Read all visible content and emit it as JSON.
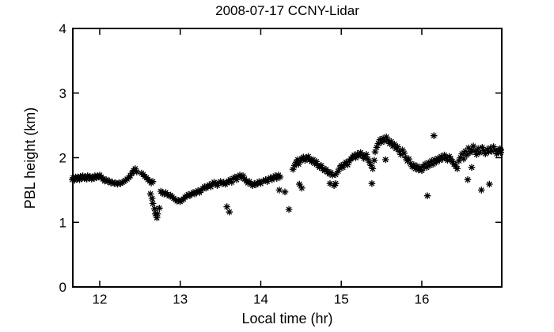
{
  "figure": {
    "title": "2008-07-17 CCNY-Lidar"
  },
  "chart_data": {
    "type": "scatter",
    "title": "2008-07-17 CCNY-Lidar",
    "xlabel": "Local time (hr)",
    "ylabel": "PBL height (km)",
    "xlim": [
      11.666,
      16.993
    ],
    "ylim": [
      0,
      4
    ],
    "xticks": [
      12,
      13,
      14,
      15,
      16
    ],
    "yticks": [
      0,
      1,
      2,
      3,
      4
    ],
    "grid": false,
    "legend": "none",
    "marker": "asterisk",
    "marker_color": "#000000",
    "background_color": "#ffffff",
    "axis_color": "#000000",
    "points": [
      [
        11.66,
        1.66
      ],
      [
        11.67,
        1.69
      ],
      [
        11.69,
        1.65
      ],
      [
        11.7,
        1.7
      ],
      [
        11.72,
        1.67
      ],
      [
        11.73,
        1.7
      ],
      [
        11.75,
        1.66
      ],
      [
        11.76,
        1.71
      ],
      [
        11.78,
        1.68
      ],
      [
        11.79,
        1.72
      ],
      [
        11.81,
        1.68
      ],
      [
        11.82,
        1.7
      ],
      [
        11.84,
        1.67
      ],
      [
        11.85,
        1.72
      ],
      [
        11.87,
        1.69
      ],
      [
        11.88,
        1.71
      ],
      [
        11.9,
        1.67
      ],
      [
        11.91,
        1.7
      ],
      [
        11.93,
        1.68
      ],
      [
        11.94,
        1.72
      ],
      [
        11.96,
        1.69
      ],
      [
        11.97,
        1.72
      ],
      [
        11.99,
        1.7
      ],
      [
        12.0,
        1.73
      ],
      [
        12.02,
        1.7
      ],
      [
        12.04,
        1.67
      ],
      [
        12.06,
        1.64
      ],
      [
        12.08,
        1.66
      ],
      [
        12.1,
        1.63
      ],
      [
        12.12,
        1.64
      ],
      [
        12.14,
        1.61
      ],
      [
        12.16,
        1.62
      ],
      [
        12.18,
        1.6
      ],
      [
        12.2,
        1.61
      ],
      [
        12.22,
        1.59
      ],
      [
        12.24,
        1.61
      ],
      [
        12.26,
        1.6
      ],
      [
        12.28,
        1.62
      ],
      [
        12.3,
        1.63
      ],
      [
        12.32,
        1.65
      ],
      [
        12.34,
        1.67
      ],
      [
        12.36,
        1.69
      ],
      [
        12.38,
        1.72
      ],
      [
        12.4,
        1.76
      ],
      [
        12.42,
        1.8
      ],
      [
        12.44,
        1.83
      ],
      [
        12.46,
        1.78
      ],
      [
        12.52,
        1.76
      ],
      [
        12.54,
        1.74
      ],
      [
        12.56,
        1.71
      ],
      [
        12.58,
        1.69
      ],
      [
        12.6,
        1.66
      ],
      [
        12.62,
        1.64
      ],
      [
        12.64,
        1.61
      ],
      [
        12.66,
        1.63
      ],
      [
        12.63,
        1.44
      ],
      [
        12.65,
        1.37
      ],
      [
        12.66,
        1.29
      ],
      [
        12.68,
        1.21
      ],
      [
        12.69,
        1.13
      ],
      [
        12.71,
        1.07
      ],
      [
        12.72,
        1.13
      ],
      [
        12.74,
        1.22
      ],
      [
        12.76,
        1.48
      ],
      [
        12.78,
        1.45
      ],
      [
        12.8,
        1.44
      ],
      [
        12.82,
        1.46
      ],
      [
        12.84,
        1.43
      ],
      [
        12.86,
        1.41
      ],
      [
        12.88,
        1.42
      ],
      [
        12.9,
        1.39
      ],
      [
        12.92,
        1.37
      ],
      [
        12.94,
        1.35
      ],
      [
        12.96,
        1.33
      ],
      [
        12.98,
        1.34
      ],
      [
        13.0,
        1.32
      ],
      [
        13.02,
        1.34
      ],
      [
        13.04,
        1.36
      ],
      [
        13.06,
        1.39
      ],
      [
        13.08,
        1.41
      ],
      [
        13.1,
        1.43
      ],
      [
        13.12,
        1.41
      ],
      [
        13.14,
        1.44
      ],
      [
        13.16,
        1.46
      ],
      [
        13.18,
        1.44
      ],
      [
        13.2,
        1.47
      ],
      [
        13.22,
        1.49
      ],
      [
        13.24,
        1.46
      ],
      [
        13.26,
        1.5
      ],
      [
        13.28,
        1.52
      ],
      [
        13.3,
        1.55
      ],
      [
        13.32,
        1.53
      ],
      [
        13.34,
        1.56
      ],
      [
        13.36,
        1.58
      ],
      [
        13.38,
        1.55
      ],
      [
        13.4,
        1.6
      ],
      [
        13.42,
        1.62
      ],
      [
        13.44,
        1.6
      ],
      [
        13.46,
        1.57
      ],
      [
        13.48,
        1.61
      ],
      [
        13.5,
        1.63
      ],
      [
        13.52,
        1.6
      ],
      [
        13.54,
        1.62
      ],
      [
        13.56,
        1.59
      ],
      [
        13.58,
        1.61
      ],
      [
        13.58,
        1.24
      ],
      [
        13.61,
        1.16
      ],
      [
        13.6,
        1.64
      ],
      [
        13.62,
        1.66
      ],
      [
        13.64,
        1.62
      ],
      [
        13.66,
        1.68
      ],
      [
        13.68,
        1.7
      ],
      [
        13.7,
        1.66
      ],
      [
        13.72,
        1.71
      ],
      [
        13.74,
        1.73
      ],
      [
        13.76,
        1.69
      ],
      [
        13.78,
        1.72
      ],
      [
        13.8,
        1.67
      ],
      [
        13.82,
        1.64
      ],
      [
        13.84,
        1.61
      ],
      [
        13.86,
        1.63
      ],
      [
        13.88,
        1.59
      ],
      [
        13.9,
        1.57
      ],
      [
        13.92,
        1.6
      ],
      [
        13.94,
        1.58
      ],
      [
        13.96,
        1.61
      ],
      [
        13.98,
        1.63
      ],
      [
        14.0,
        1.6
      ],
      [
        14.03,
        1.64
      ],
      [
        14.06,
        1.66
      ],
      [
        14.08,
        1.63
      ],
      [
        14.1,
        1.67
      ],
      [
        14.12,
        1.69
      ],
      [
        14.14,
        1.66
      ],
      [
        14.16,
        1.7
      ],
      [
        14.18,
        1.72
      ],
      [
        14.2,
        1.68
      ],
      [
        14.22,
        1.73
      ],
      [
        14.24,
        1.7
      ],
      [
        14.23,
        1.5
      ],
      [
        14.3,
        1.47
      ],
      [
        14.35,
        1.2
      ],
      [
        14.4,
        1.82
      ],
      [
        14.42,
        1.88
      ],
      [
        14.44,
        1.93
      ],
      [
        14.46,
        1.97
      ],
      [
        14.47,
        1.9
      ],
      [
        14.49,
        1.95
      ],
      [
        14.48,
        1.59
      ],
      [
        14.51,
        1.53
      ],
      [
        14.51,
        1.99
      ],
      [
        14.53,
        2.01
      ],
      [
        14.55,
        1.96
      ],
      [
        14.57,
        2.0
      ],
      [
        14.59,
        2.02
      ],
      [
        14.61,
        1.97
      ],
      [
        14.63,
        1.94
      ],
      [
        14.65,
        1.97
      ],
      [
        14.67,
        1.91
      ],
      [
        14.69,
        1.94
      ],
      [
        14.71,
        1.88
      ],
      [
        14.73,
        1.85
      ],
      [
        14.75,
        1.88
      ],
      [
        14.77,
        1.83
      ],
      [
        14.79,
        1.8
      ],
      [
        14.81,
        1.82
      ],
      [
        14.83,
        1.78
      ],
      [
        14.85,
        1.75
      ],
      [
        14.87,
        1.77
      ],
      [
        14.89,
        1.73
      ],
      [
        14.86,
        1.6
      ],
      [
        14.91,
        1.57
      ],
      [
        14.93,
        1.74
      ],
      [
        14.93,
        1.6
      ],
      [
        14.96,
        1.79
      ],
      [
        14.98,
        1.84
      ],
      [
        15.0,
        1.88
      ],
      [
        15.02,
        1.85
      ],
      [
        15.04,
        1.9
      ],
      [
        15.06,
        1.93
      ],
      [
        15.08,
        1.89
      ],
      [
        15.1,
        1.95
      ],
      [
        15.12,
        1.98
      ],
      [
        15.14,
        2.01
      ],
      [
        15.16,
        2.04
      ],
      [
        15.18,
        2.0
      ],
      [
        15.2,
        2.06
      ],
      [
        15.22,
        2.03
      ],
      [
        15.24,
        2.08
      ],
      [
        15.26,
        2.04
      ],
      [
        15.28,
        1.99
      ],
      [
        15.3,
        2.02
      ],
      [
        15.31,
        2.05
      ],
      [
        15.33,
        1.98
      ],
      [
        15.35,
        1.93
      ],
      [
        15.37,
        1.88
      ],
      [
        15.38,
        1.6
      ],
      [
        15.39,
        1.83
      ],
      [
        15.41,
        1.96
      ],
      [
        15.42,
        2.09
      ],
      [
        15.44,
        2.16
      ],
      [
        15.46,
        2.22
      ],
      [
        15.48,
        2.28
      ],
      [
        15.5,
        2.24
      ],
      [
        15.52,
        2.3
      ],
      [
        15.54,
        2.26
      ],
      [
        15.56,
        2.32
      ],
      [
        15.58,
        2.27
      ],
      [
        15.6,
        2.22
      ],
      [
        15.62,
        2.25
      ],
      [
        15.55,
        1.97
      ],
      [
        15.64,
        2.18
      ],
      [
        15.66,
        2.21
      ],
      [
        15.68,
        2.14
      ],
      [
        15.7,
        2.17
      ],
      [
        15.72,
        2.1
      ],
      [
        15.74,
        2.05
      ],
      [
        15.76,
        2.12
      ],
      [
        15.78,
        2.07
      ],
      [
        15.8,
        2.0
      ],
      [
        15.82,
        1.95
      ],
      [
        15.84,
        1.98
      ],
      [
        15.86,
        1.91
      ],
      [
        15.88,
        1.86
      ],
      [
        15.9,
        1.89
      ],
      [
        15.92,
        1.83
      ],
      [
        15.94,
        1.87
      ],
      [
        15.96,
        1.81
      ],
      [
        15.98,
        1.85
      ],
      [
        16.0,
        1.8
      ],
      [
        16.02,
        1.86
      ],
      [
        16.04,
        1.9
      ],
      [
        16.06,
        1.85
      ],
      [
        16.07,
        1.41
      ],
      [
        16.08,
        1.92
      ],
      [
        16.1,
        1.88
      ],
      [
        16.12,
        1.95
      ],
      [
        16.14,
        1.9
      ],
      [
        16.15,
        2.34
      ],
      [
        16.16,
        1.97
      ],
      [
        16.18,
        1.93
      ],
      [
        16.2,
        1.99
      ],
      [
        16.22,
        1.96
      ],
      [
        16.24,
        2.02
      ],
      [
        16.26,
        1.98
      ],
      [
        16.28,
        2.04
      ],
      [
        16.3,
        2.0
      ],
      [
        16.32,
        1.96
      ],
      [
        16.34,
        2.02
      ],
      [
        16.36,
        1.98
      ],
      [
        16.38,
        1.94
      ],
      [
        16.4,
        1.9
      ],
      [
        16.42,
        1.87
      ],
      [
        16.44,
        1.83
      ],
      [
        16.46,
        1.95
      ],
      [
        16.48,
        2.0
      ],
      [
        16.5,
        2.06
      ],
      [
        16.52,
        1.98
      ],
      [
        16.54,
        2.1
      ],
      [
        16.56,
        2.04
      ],
      [
        16.57,
        1.66
      ],
      [
        16.58,
        2.15
      ],
      [
        16.6,
        2.08
      ],
      [
        16.62,
        2.12
      ],
      [
        16.62,
        1.85
      ],
      [
        16.64,
        2.18
      ],
      [
        16.66,
        2.1
      ],
      [
        16.68,
        2.05
      ],
      [
        16.7,
        2.14
      ],
      [
        16.72,
        2.08
      ],
      [
        16.74,
        1.5
      ],
      [
        16.75,
        2.16
      ],
      [
        16.77,
        2.11
      ],
      [
        16.79,
        2.06
      ],
      [
        16.81,
        2.13
      ],
      [
        16.83,
        2.09
      ],
      [
        16.84,
        1.59
      ],
      [
        16.85,
        2.15
      ],
      [
        16.87,
        2.1
      ],
      [
        16.89,
        2.17
      ],
      [
        16.91,
        2.12
      ],
      [
        16.93,
        2.06
      ],
      [
        16.95,
        2.1
      ],
      [
        16.97,
        2.14
      ],
      [
        16.98,
        2.08
      ],
      [
        16.98,
        2.12
      ]
    ]
  }
}
